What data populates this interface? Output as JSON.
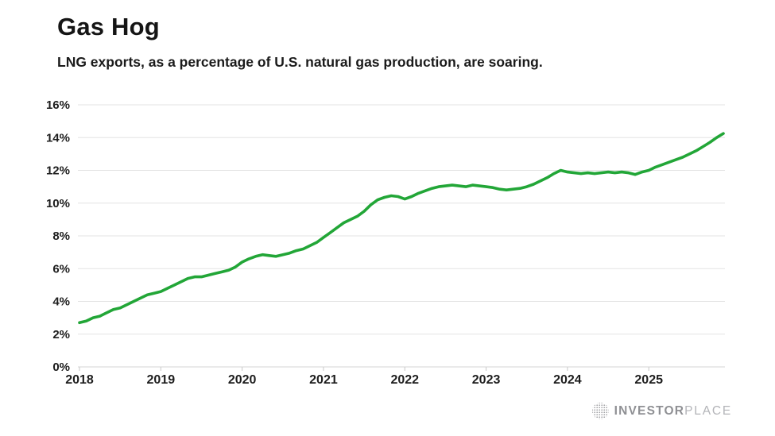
{
  "header": {
    "title": "Gas Hog",
    "subtitle": "LNG exports, as a percentage of U.S. natural gas production, are soaring."
  },
  "footer": {
    "brand_bold": "INVESTOR",
    "brand_light": "PLACE",
    "brand_icon": "dotted-globe-icon"
  },
  "colors": {
    "background": "#ffffff",
    "line": "#22a637",
    "grid": "#e3e3e3",
    "baseline": "#d6d6d6",
    "tick": "#c9c9c9",
    "axis_text": "#1d1d1d",
    "brand_gray": "#8f9094"
  },
  "chart_data": {
    "type": "line",
    "title": "Gas Hog",
    "subtitle": "LNG exports, as a percentage of U.S. natural gas production, are soaring.",
    "unit": "%",
    "frequency": "monthly",
    "x_start": "2018-01",
    "x_end": "2025-12",
    "x_tick_labels": [
      "2018",
      "2019",
      "2020",
      "2021",
      "2022",
      "2023",
      "2024",
      "2025"
    ],
    "y_tick_labels": [
      "0%",
      "2%",
      "4%",
      "6%",
      "8%",
      "10%",
      "12%",
      "14%",
      "16%"
    ],
    "y_ticks": [
      0,
      2,
      4,
      6,
      8,
      10,
      12,
      14,
      16
    ],
    "ylim": [
      0,
      16
    ],
    "grid": "horizontal",
    "legend": "none",
    "series": [
      {
        "name": "LNG exports as % of U.S. natural gas production",
        "color": "#22a637",
        "values": [
          2.7,
          2.8,
          3.0,
          3.1,
          3.3,
          3.5,
          3.6,
          3.8,
          4.0,
          4.2,
          4.4,
          4.5,
          4.6,
          4.8,
          5.0,
          5.2,
          5.4,
          5.5,
          5.5,
          5.6,
          5.7,
          5.8,
          5.9,
          6.1,
          6.4,
          6.6,
          6.75,
          6.85,
          6.8,
          6.75,
          6.85,
          6.95,
          7.1,
          7.2,
          7.4,
          7.6,
          7.9,
          8.2,
          8.5,
          8.8,
          9.0,
          9.2,
          9.5,
          9.9,
          10.2,
          10.35,
          10.45,
          10.4,
          10.25,
          10.4,
          10.6,
          10.75,
          10.9,
          11.0,
          11.05,
          11.1,
          11.05,
          11.0,
          11.1,
          11.05,
          11.0,
          10.95,
          10.85,
          10.8,
          10.85,
          10.9,
          11.0,
          11.15,
          11.35,
          11.55,
          11.8,
          12.0,
          11.9,
          11.85,
          11.8,
          11.85,
          11.8,
          11.85,
          11.9,
          11.85,
          11.9,
          11.85,
          11.75,
          11.9,
          12.0,
          12.2,
          12.35,
          12.5,
          12.65,
          12.8,
          13.0,
          13.2,
          13.45,
          13.7,
          14.0,
          14.25
        ]
      }
    ]
  }
}
